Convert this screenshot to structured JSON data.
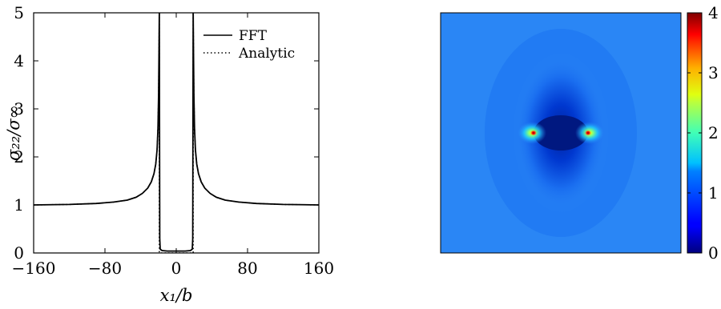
{
  "chart_data": [
    {
      "type": "line",
      "xlabel": "x₁/b",
      "ylabel": "σ₂₂/σ∞",
      "xlim": [
        -160,
        160
      ],
      "ylim": [
        0,
        5
      ],
      "xticks": [
        -160,
        -80,
        0,
        80,
        160
      ],
      "xtick_labels": [
        "−160",
        "−80",
        "0",
        "80",
        "160"
      ],
      "yticks": [
        0,
        1,
        2,
        3,
        4,
        5
      ],
      "ytick_labels": [
        "0",
        "1",
        "2",
        "3",
        "4",
        "5"
      ],
      "grid": false,
      "legend_position": "top-right",
      "series": [
        {
          "name": "FFT",
          "style": "solid",
          "x": [
            -160,
            -120,
            -90,
            -70,
            -55,
            -45,
            -38,
            -32,
            -28,
            -25,
            -23,
            -21.5,
            -20.5,
            -19.8,
            -19.3,
            -19.0,
            -18.5,
            -18,
            -16,
            -10,
            0,
            10,
            16,
            18,
            18.5,
            19.0,
            19.3,
            19.8,
            20.5,
            21.5,
            23,
            25,
            28,
            32,
            38,
            45,
            55,
            70,
            90,
            120,
            160
          ],
          "y": [
            1.0,
            1.01,
            1.03,
            1.06,
            1.1,
            1.16,
            1.24,
            1.35,
            1.48,
            1.65,
            1.85,
            2.15,
            2.6,
            3.3,
            4.3,
            5.0,
            0.3,
            0.08,
            0.05,
            0.04,
            0.04,
            0.04,
            0.05,
            0.08,
            0.3,
            5.0,
            4.3,
            3.3,
            2.6,
            2.15,
            1.85,
            1.65,
            1.48,
            1.35,
            1.24,
            1.16,
            1.1,
            1.06,
            1.03,
            1.01,
            1.0
          ]
        },
        {
          "name": "Analytic",
          "style": "dotted",
          "x": [
            -160,
            -120,
            -90,
            -70,
            -55,
            -45,
            -38,
            -32,
            -28,
            -25,
            -23,
            -21.5,
            -20.5,
            -19.8,
            -19.3,
            -19.0,
            -19.0,
            -16,
            0,
            16,
            19.0,
            19.0,
            19.3,
            19.8,
            20.5,
            21.5,
            23,
            25,
            28,
            32,
            38,
            45,
            55,
            70,
            90,
            120,
            160
          ],
          "y": [
            1.0,
            1.01,
            1.03,
            1.06,
            1.1,
            1.16,
            1.24,
            1.35,
            1.48,
            1.65,
            1.85,
            2.15,
            2.6,
            3.3,
            4.3,
            5.0,
            0,
            0,
            0,
            0,
            0,
            5.0,
            4.3,
            3.3,
            2.6,
            2.15,
            1.85,
            1.65,
            1.48,
            1.35,
            1.24,
            1.16,
            1.1,
            1.06,
            1.03,
            1.01,
            1.0
          ]
        }
      ]
    },
    {
      "type": "heatmap",
      "colormap": "jet",
      "colorbar_range": [
        0,
        4
      ],
      "colorbar_ticks": [
        0,
        1,
        2,
        3,
        4
      ],
      "colorbar_tick_labels": [
        "0",
        "1",
        "2",
        "3",
        "4"
      ],
      "background_value": 1.0,
      "crack_half_length_fraction": 0.06,
      "peak_value": 4
    }
  ]
}
